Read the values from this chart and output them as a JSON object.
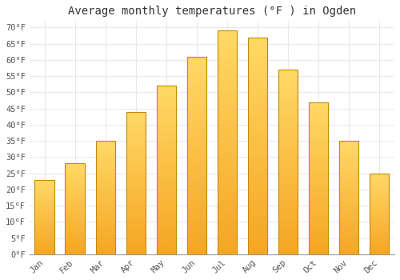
{
  "title": "Average monthly temperatures (°F ) in Ogden",
  "months": [
    "Jan",
    "Feb",
    "Mar",
    "Apr",
    "May",
    "Jun",
    "Jul",
    "Aug",
    "Sep",
    "Oct",
    "Nov",
    "Dec"
  ],
  "values": [
    23,
    28,
    35,
    44,
    52,
    61,
    69,
    67,
    57,
    47,
    35,
    25
  ],
  "bar_color_bottom": "#F5A623",
  "bar_color_top": "#FFD966",
  "bar_edge_color": "#C68A00",
  "background_color": "#FFFFFF",
  "plot_bg_color": "#FFFFFF",
  "grid_color": "#E8E8E8",
  "ylim": [
    0,
    72
  ],
  "yticks": [
    0,
    5,
    10,
    15,
    20,
    25,
    30,
    35,
    40,
    45,
    50,
    55,
    60,
    65,
    70
  ],
  "ytick_labels": [
    "0°F",
    "5°F",
    "10°F",
    "15°F",
    "20°F",
    "25°F",
    "30°F",
    "35°F",
    "40°F",
    "45°F",
    "50°F",
    "55°F",
    "60°F",
    "65°F",
    "70°F"
  ],
  "title_fontsize": 10,
  "tick_fontsize": 7.5,
  "font_family": "monospace",
  "bar_width": 0.65
}
